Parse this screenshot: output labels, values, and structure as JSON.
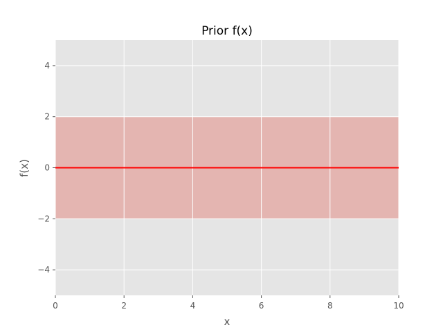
{
  "chart_data": {
    "type": "line",
    "title": "Prior f(x)",
    "xlabel": "x",
    "ylabel": "f(x)",
    "xlim": [
      0,
      10
    ],
    "ylim": [
      -5,
      5
    ],
    "x_ticks": [
      0,
      2,
      4,
      6,
      8,
      10
    ],
    "x_tick_labels": [
      "0",
      "2",
      "4",
      "6",
      "8",
      "10"
    ],
    "y_ticks": [
      -4,
      -2,
      0,
      2,
      4
    ],
    "y_tick_labels": [
      "−4",
      "−2",
      "0",
      "2",
      "4"
    ],
    "grid": true,
    "series": [
      {
        "kind": "line",
        "color": "#ff0000",
        "x": [
          0,
          10
        ],
        "y": [
          0,
          0
        ]
      },
      {
        "kind": "band",
        "color": "#e4b5b1",
        "x": [
          0,
          10
        ],
        "lower": [
          -2,
          -2
        ],
        "upper": [
          2,
          2
        ]
      }
    ],
    "colors": {
      "plot_background": "#e5e5e5",
      "grid": "#ffffff",
      "band": "#e4b5b1",
      "line": "#ff0000"
    }
  }
}
